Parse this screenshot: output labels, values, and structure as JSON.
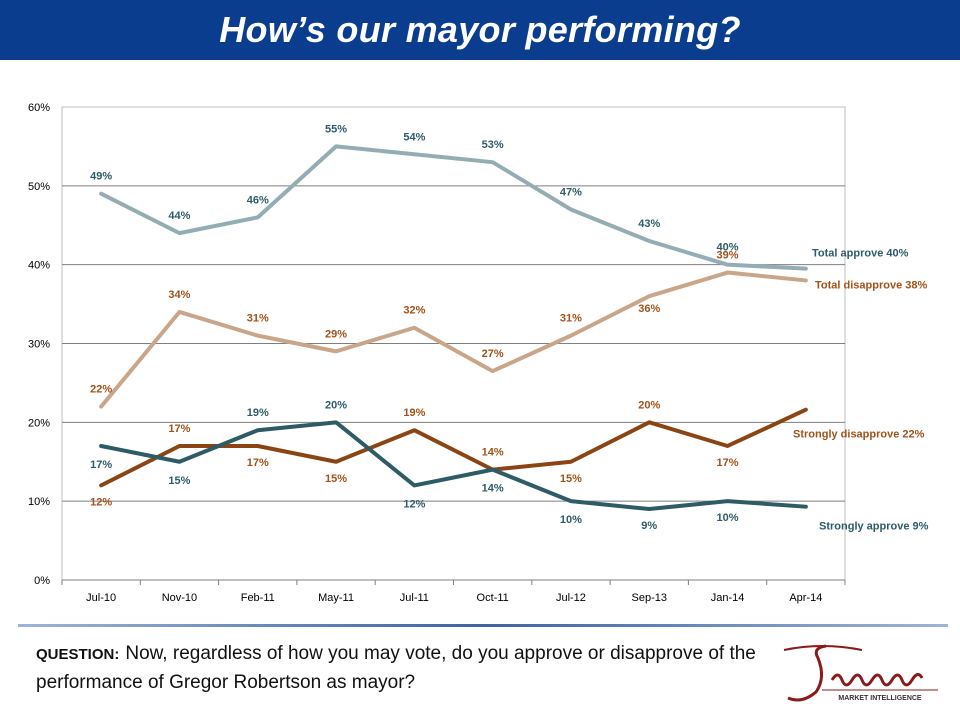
{
  "header": {
    "title": "How’s our mayor performing?"
  },
  "question": {
    "label": "QUESTION:",
    "text": "Now, regardless of how you may vote, do you approve or disapprove of the performance of Gregor Robertson as mayor?"
  },
  "logo": {
    "brand": "Justason",
    "tagline": "MARKET INTELLIGENCE",
    "color": "#8b1a1a"
  },
  "chart_data": {
    "type": "line",
    "title": "",
    "xlabel": "",
    "ylabel": "",
    "ylim": [
      0,
      60
    ],
    "yticks": [
      "0%",
      "10%",
      "20%",
      "30%",
      "40%",
      "50%",
      "60%"
    ],
    "grid": true,
    "categories": [
      "Jul-10",
      "Nov-10",
      "Feb-11",
      "May-11",
      "Jul-11",
      "Oct-11",
      "Jul-12",
      "Sep-13",
      "Jan-14",
      "Apr-14"
    ],
    "series": [
      {
        "name": "Total approve 40%",
        "color": "#94adb4",
        "values": [
          49,
          44,
          46,
          55,
          54,
          53,
          47,
          43,
          40,
          39.5
        ],
        "labels": [
          "49%",
          "44%",
          "46%",
          "55%",
          "54%",
          "53%",
          "47%",
          "43%",
          "40%",
          null
        ],
        "label_color": "#2e5b6a"
      },
      {
        "name": "Total disapprove 38%",
        "color": "#c9a58a",
        "values": [
          22,
          34,
          31,
          29,
          32,
          26.5,
          31,
          36,
          39,
          38
        ],
        "labels": [
          "22%",
          "34%",
          "31%",
          "29%",
          "32%",
          "27%",
          "31%",
          "36%",
          "39%",
          null
        ],
        "label_color": "#a0521a"
      },
      {
        "name": "Strongly disapprove 22%",
        "color": "#8b4513",
        "values": [
          12,
          17,
          17,
          15,
          19,
          14,
          15,
          20,
          17,
          21.6
        ],
        "labels": [
          "12%",
          "17%",
          "17%",
          "15%",
          "19%",
          "14%",
          "15%",
          "20%",
          "17%",
          null
        ],
        "label_color": "#a0521a"
      },
      {
        "name": "Strongly approve 9%",
        "color": "#2d5b66",
        "values": [
          17,
          15,
          19,
          20,
          12,
          14,
          10,
          9,
          10,
          9.3
        ],
        "labels": [
          "17%",
          "15%",
          "19%",
          "20%",
          "12%",
          "14%",
          "10%",
          "9%",
          "10%",
          null
        ],
        "label_color": "#2e5b6a"
      }
    ]
  }
}
